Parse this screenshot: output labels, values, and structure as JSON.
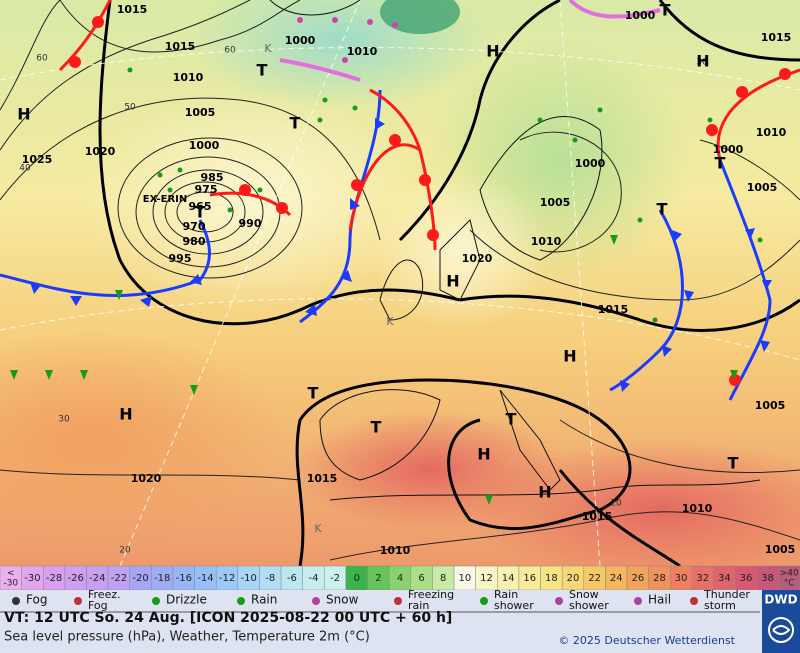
{
  "map": {
    "pressure_labels": [
      1015,
      1015,
      1010,
      1005,
      1000,
      1020,
      1025,
      985,
      975,
      965,
      970,
      980,
      990,
      995,
      1000,
      1010,
      1000,
      1015,
      1010,
      1000,
      1005,
      1000,
      1005,
      1010,
      1020,
      1015,
      1005,
      1020,
      1015,
      1015,
      1010,
      1010,
      1005
    ],
    "temperature_labels": [
      60,
      60,
      50,
      40,
      30,
      20,
      20,
      30
    ],
    "highs": [
      "H",
      "H",
      "H",
      "H",
      "H",
      "H",
      "H",
      "H"
    ],
    "lows": [
      "T",
      "T",
      "T",
      "T",
      "T",
      "T",
      "T",
      "T",
      "T",
      "T"
    ],
    "storm_name": "EX-ERIN",
    "k_labels": [
      "K",
      "K",
      "K"
    ]
  },
  "temperature_scale": {
    "low_end": [
      "<",
      "-30"
    ],
    "steps": [
      {
        "value": -30,
        "color": "#e2a6ee"
      },
      {
        "value": -28,
        "color": "#d9a0ef"
      },
      {
        "value": -26,
        "color": "#d0a0f0"
      },
      {
        "value": -24,
        "color": "#c8a0f0"
      },
      {
        "value": -22,
        "color": "#bfa2f2"
      },
      {
        "value": -20,
        "color": "#a6a6f4"
      },
      {
        "value": -18,
        "color": "#9eaef5"
      },
      {
        "value": -16,
        "color": "#98b6f6"
      },
      {
        "value": -14,
        "color": "#96c0f7"
      },
      {
        "value": -12,
        "color": "#9ccaf8"
      },
      {
        "value": -10,
        "color": "#a8d6f8"
      },
      {
        "value": -8,
        "color": "#b2def6"
      },
      {
        "value": -6,
        "color": "#bce6f2"
      },
      {
        "value": -4,
        "color": "#c6ecee"
      },
      {
        "value": -2,
        "color": "#ccf0ea"
      },
      {
        "value": 0,
        "color": "#3cb44a"
      },
      {
        "value": 2,
        "color": "#66c45a"
      },
      {
        "value": 4,
        "color": "#8ad270"
      },
      {
        "value": 6,
        "color": "#aade88"
      },
      {
        "value": 8,
        "color": "#c8eaa4"
      },
      {
        "value": 10,
        "color": "#f8f8e8"
      },
      {
        "value": 12,
        "color": "#f8f6c8"
      },
      {
        "value": 14,
        "color": "#f8f2b0"
      },
      {
        "value": 16,
        "color": "#f8ec9a"
      },
      {
        "value": 18,
        "color": "#f8e486"
      },
      {
        "value": 20,
        "color": "#f8d874"
      },
      {
        "value": 22,
        "color": "#f6c866"
      },
      {
        "value": 24,
        "color": "#f4b65e"
      },
      {
        "value": 26,
        "color": "#f2a45c"
      },
      {
        "value": 28,
        "color": "#f0925e"
      },
      {
        "value": 30,
        "color": "#ee8062"
      },
      {
        "value": 32,
        "color": "#e87068"
      },
      {
        "value": 34,
        "color": "#e0646c"
      },
      {
        "value": 36,
        "color": "#d65a72"
      },
      {
        "value": 38,
        "color": "#c85878"
      }
    ],
    "high_end": [
      ">40",
      "°C"
    ]
  },
  "weather_legend": [
    [
      "Fog"
    ],
    [
      "Freez.",
      "Fog"
    ],
    [
      "Drizzle"
    ],
    [
      "Rain"
    ],
    [
      "Snow"
    ],
    [
      "Freezing",
      "rain"
    ],
    [
      "Rain",
      "shower"
    ],
    [
      "Snow",
      "shower"
    ],
    [
      "Hail"
    ],
    [
      "Thunder",
      "storm"
    ]
  ],
  "footer": {
    "valid_time": "VT: 12 UTC So.  24 Aug. [ICON 2025-08-22  00 UTC + 60 h]",
    "description": "Sea level pressure (hPa), Weather, Temperature 2m (°C)",
    "copyright": "© 2025 Deutscher Wetterdienst",
    "logo": "DWD"
  }
}
